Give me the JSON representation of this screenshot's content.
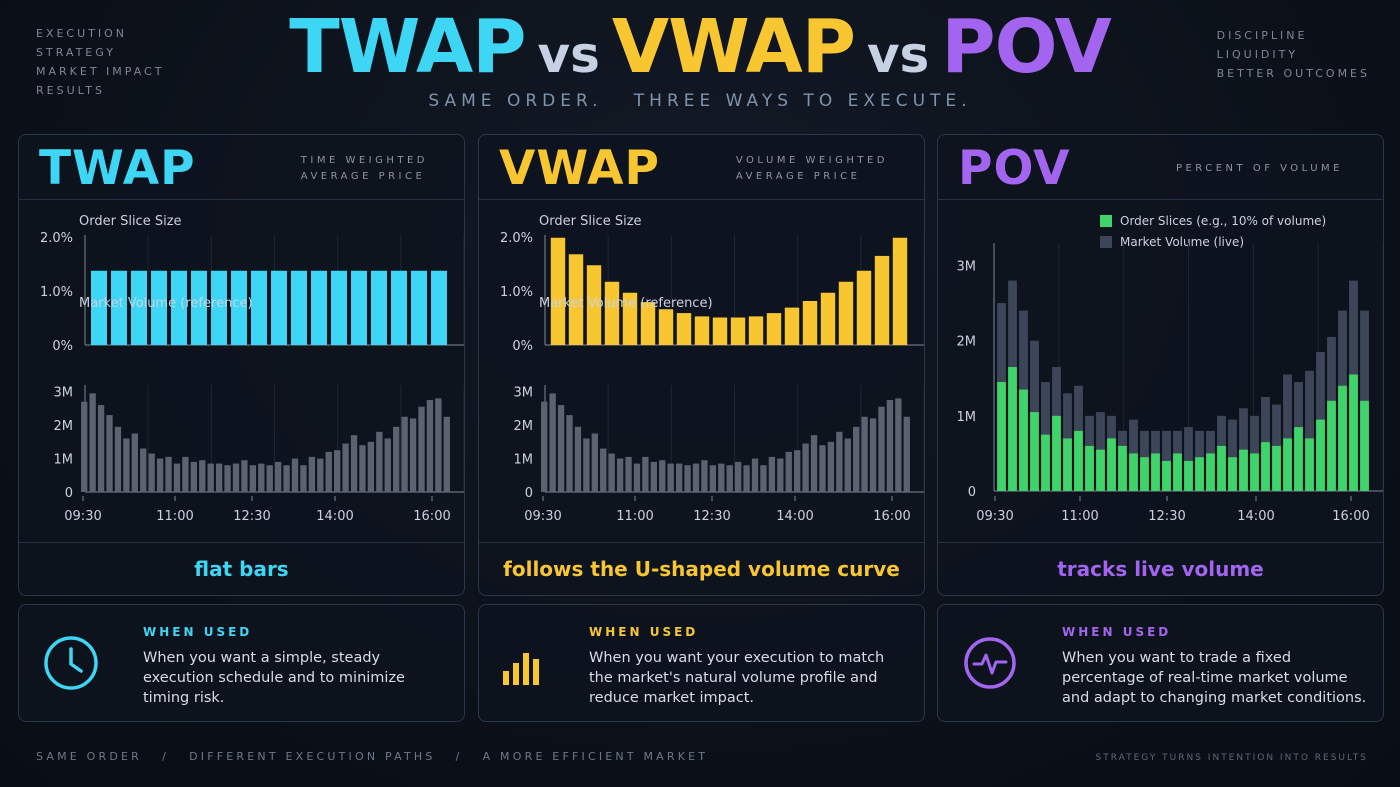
{
  "corner_left": [
    "EXECUTION",
    "STRATEGY",
    "MARKET IMPACT",
    "RESULTS"
  ],
  "corner_right": [
    "DISCIPLINE",
    "LIQUIDITY",
    "BETTER OUTCOMES"
  ],
  "title": {
    "twap": "TWAP",
    "vs1": "vs",
    "vwap": "VWAP",
    "vs2": "vs",
    "pov": "POV"
  },
  "subtitle": "SAME ORDER.   THREE WAYS TO EXECUTE.",
  "panels": [
    {
      "name": "TWAP",
      "desc": [
        "TIME WEIGHTED",
        "AVERAGE PRICE"
      ],
      "footer": "flat bars"
    },
    {
      "name": "VWAP",
      "desc": [
        "VOLUME WEIGHTED",
        "AVERAGE PRICE"
      ],
      "footer": "follows the U-shaped volume curve"
    },
    {
      "name": "POV",
      "desc": [
        "PERCENT OF VOLUME"
      ],
      "footer": "tracks live volume"
    }
  ],
  "cards": [
    {
      "label": "WHEN USED",
      "icon": "clock-icon",
      "text": "When you want a simple, steady execution schedule and to minimize timing risk."
    },
    {
      "label": "WHEN USED",
      "icon": "bar-chart-icon",
      "text": "When you want your execution to match the market's natural volume profile and reduce market impact."
    },
    {
      "label": "WHEN USED",
      "icon": "pulse-icon",
      "text": "When you want to trade a fixed percentage of real-time market volume and adapt to changing market conditions."
    }
  ],
  "bottom_left": "SAME ORDER   /   DIFFERENT EXECUTION PATHS   /   A MORE EFFICIENT MARKET",
  "bottom_right": "STRATEGY TURNS INTENTION INTO RESULTS",
  "colors": {
    "twap": "#3dd6f5",
    "vwap": "#f7c630",
    "pov_slice": "#3fd469",
    "pov": "#a365f0",
    "volume": "#5b6270",
    "pov_volume": "#3d4658"
  },
  "chart_data": [
    {
      "type": "bar",
      "title": "Order Slice Size",
      "x_ticks": [
        "09:30",
        "11:00",
        "12:30",
        "14:00",
        "16:00"
      ],
      "y_ticks": [
        "0%",
        "1.0%",
        "2.0%"
      ],
      "ylim": [
        0,
        2.0
      ],
      "values": [
        1.35,
        1.35,
        1.35,
        1.35,
        1.35,
        1.35,
        1.35,
        1.35,
        1.35,
        1.35,
        1.35,
        1.35,
        1.35,
        1.35,
        1.35,
        1.35,
        1.35,
        1.35
      ]
    },
    {
      "type": "bar",
      "title": "Market Volume (reference)",
      "x_ticks": [
        "09:30",
        "11:00",
        "12:30",
        "14:00",
        "16:00"
      ],
      "y_ticks": [
        "0",
        "1M",
        "2M",
        "3M"
      ],
      "ylim": [
        0,
        3.2
      ],
      "values": [
        2.7,
        2.95,
        2.6,
        2.3,
        1.95,
        1.6,
        1.75,
        1.3,
        1.15,
        1.0,
        1.05,
        0.85,
        1.05,
        0.9,
        0.95,
        0.85,
        0.85,
        0.8,
        0.85,
        0.95,
        0.8,
        0.85,
        0.8,
        0.9,
        0.8,
        1.0,
        0.8,
        1.05,
        1.0,
        1.2,
        1.25,
        1.45,
        1.7,
        1.4,
        1.5,
        1.8,
        1.6,
        1.95,
        2.25,
        2.2,
        2.55,
        2.75,
        2.8,
        2.25
      ]
    },
    {
      "type": "bar",
      "title": "Order Slice Size",
      "x_ticks": [
        "09:30",
        "11:00",
        "12:30",
        "14:00",
        "16:00"
      ],
      "y_ticks": [
        "0%",
        "1.0%",
        "2.0%"
      ],
      "ylim": [
        0,
        2.0
      ],
      "values": [
        1.95,
        1.65,
        1.45,
        1.15,
        0.95,
        0.78,
        0.65,
        0.58,
        0.52,
        0.5,
        0.5,
        0.52,
        0.58,
        0.68,
        0.8,
        0.95,
        1.15,
        1.35,
        1.62,
        1.95
      ]
    },
    {
      "type": "bar",
      "title": "Market Volume (reference)",
      "x_ticks": [
        "09:30",
        "11:00",
        "12:30",
        "14:00",
        "16:00"
      ],
      "y_ticks": [
        "0",
        "1M",
        "2M",
        "3M"
      ],
      "ylim": [
        0,
        3.2
      ],
      "values": [
        2.7,
        2.95,
        2.6,
        2.3,
        1.95,
        1.6,
        1.75,
        1.3,
        1.15,
        1.0,
        1.05,
        0.85,
        1.05,
        0.9,
        0.95,
        0.85,
        0.85,
        0.8,
        0.85,
        0.95,
        0.8,
        0.85,
        0.8,
        0.9,
        0.8,
        1.0,
        0.8,
        1.05,
        1.0,
        1.2,
        1.25,
        1.45,
        1.7,
        1.4,
        1.5,
        1.8,
        1.6,
        1.95,
        2.25,
        2.2,
        2.55,
        2.75,
        2.8,
        2.25
      ]
    },
    {
      "type": "bar",
      "legend": [
        "Order Slices (e.g., 10% of volume)",
        "Market Volume (live)"
      ],
      "x_ticks": [
        "09:30",
        "11:00",
        "12:30",
        "14:00",
        "16:00"
      ],
      "y_ticks": [
        "0",
        "1M",
        "2M",
        "3M"
      ],
      "ylim": [
        0,
        3.3
      ],
      "series": [
        {
          "name": "Order Slices (e.g., 10% of volume)",
          "values": [
            1.45,
            1.65,
            1.35,
            1.05,
            0.75,
            1.0,
            0.7,
            0.8,
            0.6,
            0.55,
            0.7,
            0.6,
            0.5,
            0.45,
            0.5,
            0.4,
            0.5,
            0.4,
            0.45,
            0.5,
            0.6,
            0.45,
            0.55,
            0.5,
            0.65,
            0.6,
            0.7,
            0.85,
            0.7,
            0.95,
            1.2,
            1.4,
            1.55,
            1.2
          ]
        },
        {
          "name": "Market Volume (live)",
          "values": [
            2.5,
            2.8,
            2.4,
            2.0,
            1.45,
            1.65,
            1.3,
            1.4,
            1.0,
            1.05,
            1.0,
            0.8,
            0.95,
            0.8,
            0.8,
            0.8,
            0.8,
            0.85,
            0.8,
            0.8,
            1.0,
            0.95,
            1.1,
            1.0,
            1.25,
            1.15,
            1.55,
            1.45,
            1.6,
            1.85,
            2.05,
            2.4,
            2.8,
            2.4
          ]
        }
      ]
    }
  ]
}
